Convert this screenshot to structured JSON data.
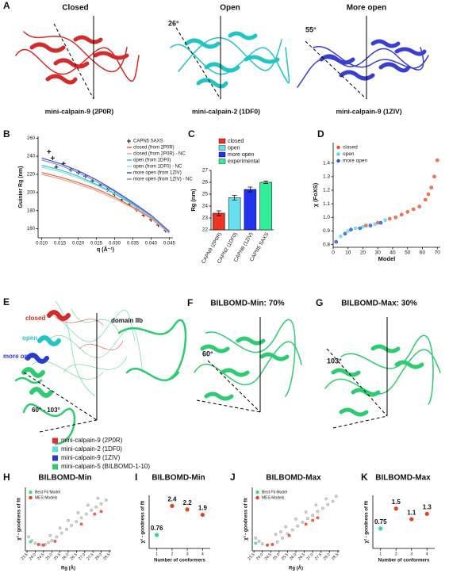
{
  "panels": {
    "A": {
      "letter": "A",
      "titles": [
        "Closed",
        "Open",
        "More open"
      ],
      "angles": [
        "26°",
        "55°"
      ],
      "names": [
        "mini-calpain-9 (2P0R)",
        "mini-calpain-2 (1DF0)",
        "mini-calpain-9 (1ZIV)"
      ]
    },
    "E": {
      "letter": "E",
      "labels": [
        "closed",
        "open",
        "more open",
        "domain IIb",
        "60° - 103°"
      ],
      "legend": [
        {
          "label": "mini-calpain-9 (2P0R)",
          "color": "#e03030"
        },
        {
          "label": "mini-calpain-2 (1DF0)",
          "color": "#5fe0e0"
        },
        {
          "label": "mini-calpain-9 (1ZIV)",
          "color": "#2a3ccf"
        },
        {
          "label": "mini-calpain-5 (BILBOMD-1-10)",
          "color": "#2ecc71"
        }
      ]
    },
    "F": {
      "letter": "F",
      "title": "BILBOMD-Min: 70%",
      "angle": "60°"
    },
    "G": {
      "letter": "G",
      "title": "BILBOMD-Max: 30%",
      "angle": "103°"
    }
  },
  "chart_data": [
    {
      "type": "line",
      "panel": "B",
      "xlabel": "q (Å⁻¹)",
      "ylabel": "Guinier Rg (nm)",
      "legend": "upper right",
      "xlim": [
        0.009,
        0.046
      ],
      "xticks": [
        {
          "value": 0.01,
          "label": "0.010"
        },
        0.015,
        {
          "value": 0.02,
          "label": "0.020"
        },
        0.025,
        {
          "value": 0.03,
          "label": "0.030"
        },
        0.035,
        {
          "value": 0.04,
          "label": "0.040"
        },
        0.045
      ],
      "ylim": [
        150,
        262
      ],
      "yticks": [
        160,
        180,
        200,
        220,
        240,
        260
      ],
      "x": [
        0.01,
        0.015,
        0.02,
        0.025,
        0.03,
        0.035,
        0.04,
        0.045
      ],
      "series": [
        {
          "name": "CAPN5 SAXS",
          "color": "#111111",
          "marker": "plus",
          "x": [
            0.012,
            0.013,
            0.014,
            0.016,
            0.018,
            0.02,
            0.022,
            0.024,
            0.026,
            0.028,
            0.03,
            0.032,
            0.034,
            0.036,
            0.038,
            0.04,
            0.042,
            0.044
          ],
          "values": [
            245,
            238,
            228,
            232,
            225,
            222,
            218,
            213,
            208,
            203,
            198,
            192,
            187,
            181,
            175,
            170,
            164,
            158
          ]
        },
        {
          "name": "closed (from 2P0R)",
          "color": "#e8603c",
          "values": [
            222,
            217,
            211,
            204,
            195,
            184,
            172,
            156
          ]
        },
        {
          "name": "closed (from 2P0R) - NC",
          "color": "#f4a582",
          "values": [
            220,
            215,
            209,
            202,
            193,
            183,
            171,
            155
          ]
        },
        {
          "name": "open (from 1DF0)",
          "color": "#2cc4c4",
          "values": [
            230,
            225,
            218,
            209,
            199,
            187,
            174,
            157
          ]
        },
        {
          "name": "open (from 1DF0) - NC",
          "color": "#8ee0e0",
          "values": [
            228,
            223,
            216,
            208,
            198,
            186,
            173,
            156
          ]
        },
        {
          "name": "more open (from 1ZIV)",
          "color": "#3a4fd0",
          "values": [
            238,
            232,
            224,
            214,
            202,
            189,
            175,
            157
          ]
        },
        {
          "name": "more open (from 1ZIV) - NC",
          "color": "#7f8fe6",
          "values": [
            236,
            230,
            222,
            212,
            201,
            188,
            174,
            156
          ]
        }
      ]
    },
    {
      "type": "bar",
      "panel": "C",
      "ylabel": "Rg (nm)",
      "ylim": [
        22,
        27
      ],
      "yticks": [
        22,
        23,
        24,
        25,
        26,
        27
      ],
      "categories": [
        "CAPN9 (2P0R)",
        "CAPN2 (1DF0)",
        "CAPN9 (1ZIV)",
        "CAPN5 SAXS"
      ],
      "values": [
        23.4,
        24.7,
        25.4,
        26.0
      ],
      "errors": [
        0.2,
        0.2,
        0.2,
        0.1
      ],
      "colors": [
        "#ee3322",
        "#66e0ee",
        "#2233ee",
        "#33ee99"
      ],
      "legend_entries": [
        {
          "name": "closed",
          "color": "#ee3322"
        },
        {
          "name": "open",
          "color": "#66e0ee"
        },
        {
          "name": "more open",
          "color": "#2233ee"
        },
        {
          "name": "experimental",
          "color": "#33ee99"
        }
      ]
    },
    {
      "type": "scatter",
      "panel": "D",
      "xlabel": "Model",
      "ylabel": "χ (FoXS)",
      "legend": "upper left",
      "xlim": [
        0,
        72
      ],
      "xticks": [
        0,
        10,
        20,
        30,
        40,
        50,
        60,
        70
      ],
      "ylim": [
        0.78,
        1.55
      ],
      "yticks": [
        0.8,
        0.9,
        {
          "value": 1,
          "label": "1.0"
        },
        1.1,
        1.2,
        1.3,
        1.4
      ],
      "series": [
        {
          "name": "closed",
          "color": "#e8502c",
          "x": [
            22,
            30,
            38,
            42,
            46,
            50,
            54,
            58,
            62,
            64,
            66,
            68,
            70
          ],
          "values": [
            0.94,
            0.96,
            0.99,
            1.0,
            1.02,
            1.04,
            1.06,
            1.08,
            1.13,
            1.17,
            1.22,
            1.3,
            1.42
          ]
        },
        {
          "name": "open",
          "color": "#55d8e8",
          "x": [
            5,
            10,
            15,
            20,
            28,
            35
          ],
          "values": [
            0.86,
            0.9,
            0.92,
            0.93,
            0.95,
            0.98
          ]
        },
        {
          "name": "more open",
          "color": "#2a4fd0",
          "x": [
            2,
            8,
            12,
            18,
            25,
            32
          ],
          "values": [
            0.82,
            0.88,
            0.91,
            0.92,
            0.94,
            0.96
          ]
        }
      ]
    },
    {
      "type": "scatter",
      "panel": "H",
      "title": "BILBOMD-Min",
      "xlabel": "Rg (Å)",
      "ylabel": "χ² - goodness of fit",
      "legend": "upper left",
      "xlim": [
        23.4,
        28.6
      ],
      "xticks": [
        23.5,
        {
          "value": 24,
          "label": "24.0"
        },
        24.5,
        {
          "value": 25,
          "label": "25.0"
        },
        25.5,
        {
          "value": 26,
          "label": "26.0"
        },
        26.5,
        {
          "value": 27,
          "label": "27.0"
        },
        27.5,
        {
          "value": 28,
          "label": "28.0"
        },
        28.5
      ],
      "ylim": [
        0,
        10
      ],
      "series": [
        {
          "color": "#aaaaaa",
          "x": [
            23.6,
            23.8,
            24.0,
            24.2,
            24.4,
            24.6,
            24.8,
            25.0,
            25.3,
            25.6,
            25.9,
            26.2,
            26.5,
            26.8,
            27.1,
            27.4,
            27.7,
            28.0,
            28.3,
            24.9,
            25.5,
            26.0,
            26.6,
            27.2,
            27.8
          ],
          "values": [
            2.2,
            1.6,
            1.2,
            1.0,
            0.9,
            1.0,
            1.3,
            1.6,
            2.2,
            2.8,
            3.4,
            4.0,
            4.6,
            5.2,
            5.8,
            6.4,
            6.9,
            7.4,
            8.0,
            2.4,
            3.6,
            4.8,
            6.0,
            7.2,
            8.3
          ]
        },
        {
          "name": "Best Fit Model",
          "color": "#2ee08a",
          "x": [
            23.7
          ],
          "values": [
            1.4
          ]
        },
        {
          "name": "MES Models",
          "color": "#e8401c",
          "x": [
            24.2,
            24.5,
            25.2,
            26.8,
            27.6,
            28.0
          ],
          "values": [
            1.0,
            0.9,
            1.5,
            4.2,
            5.8,
            6.2
          ]
        }
      ]
    },
    {
      "type": "scatter",
      "panel": "I",
      "title": "BILBOMD-Min",
      "xlabel": "Number of conformers",
      "ylabel": "χ² - goodness of fit",
      "data_labels": true,
      "xlim": [
        0.5,
        4.5
      ],
      "xticks": [
        1,
        2,
        3,
        4
      ],
      "ylim": [
        0,
        3
      ],
      "x": [
        1,
        2,
        3,
        4
      ],
      "values": [
        0.76,
        2.4,
        2.2,
        1.9
      ],
      "colors": [
        "#2ee08a",
        "#e8401c",
        "#e8401c",
        "#e8401c"
      ]
    },
    {
      "type": "scatter",
      "panel": "J",
      "title": "BILBOMD-Max",
      "xlabel": "Rg (Å)",
      "ylabel": "χ² - goodness of fit",
      "legend": "upper left",
      "xlim": [
        23.4,
        28.6
      ],
      "xticks": [
        23.5,
        {
          "value": 24,
          "label": "24.0"
        },
        24.5,
        {
          "value": 25,
          "label": "25.0"
        },
        25.5,
        {
          "value": 26,
          "label": "26.0"
        },
        26.5,
        {
          "value": 27,
          "label": "27.0"
        },
        27.5,
        {
          "value": 28,
          "label": "28.0"
        },
        28.5
      ],
      "ylim": [
        0,
        10
      ],
      "series": [
        {
          "color": "#aaaaaa",
          "x": [
            23.6,
            23.8,
            24.0,
            24.3,
            24.6,
            24.9,
            25.2,
            25.5,
            25.8,
            26.1,
            26.4,
            26.7,
            27.0,
            27.3,
            27.6,
            27.9,
            28.2,
            24.8,
            25.4,
            26.0,
            26.6,
            27.2,
            27.8,
            28.4,
            25.1
          ],
          "values": [
            2.0,
            1.5,
            1.1,
            0.9,
            1.0,
            1.4,
            2.0,
            2.7,
            3.3,
            3.9,
            4.5,
            5.1,
            5.6,
            6.2,
            6.7,
            7.3,
            7.8,
            2.6,
            3.8,
            5.0,
            6.1,
            7.2,
            8.2,
            8.6,
            3.0
          ]
        },
        {
          "name": "Best Fit Model",
          "color": "#2ee08a",
          "x": [
            23.6
          ],
          "values": [
            1.2
          ]
        },
        {
          "name": "MES Models",
          "color": "#e8401c",
          "x": [
            24.3,
            24.6,
            25.6,
            26.6,
            27.0,
            27.3
          ],
          "values": [
            0.9,
            1.0,
            2.4,
            4.2,
            4.8,
            5.2
          ]
        }
      ]
    },
    {
      "type": "scatter",
      "panel": "K",
      "title": "BILBOMD-Max",
      "xlabel": "Number of conformers",
      "ylabel": "χ² - goodness of fit",
      "data_labels": true,
      "xlim": [
        0.5,
        4.5
      ],
      "xticks": [
        1,
        2,
        3,
        4
      ],
      "ylim": [
        0,
        2
      ],
      "x": [
        1,
        2,
        3,
        4
      ],
      "values": [
        0.75,
        1.5,
        1.1,
        1.3
      ],
      "colors": [
        "#2ee08a",
        "#e8401c",
        "#e8401c",
        "#e8401c"
      ]
    }
  ]
}
